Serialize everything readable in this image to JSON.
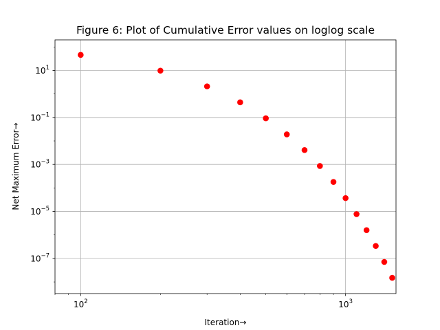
{
  "chart_data": {
    "type": "scatter",
    "title": "Figure 6: Plot of Cumulative Error values on loglog scale",
    "xlabel": "Iteration→",
    "ylabel": "Net Maximum Error→",
    "xscale": "log",
    "yscale": "log",
    "xlim": [
      80,
      1550
    ],
    "ylim": [
      3.2e-09,
      200
    ],
    "grid": true,
    "marker_color": "#ff0000",
    "x_ticks": [
      {
        "value": 100,
        "base": "10",
        "exp": "2"
      },
      {
        "value": 1000,
        "base": "10",
        "exp": "3"
      }
    ],
    "y_ticks": [
      {
        "value": 1e-07,
        "base": "10",
        "exp": "−7"
      },
      {
        "value": 1e-05,
        "base": "10",
        "exp": "−5"
      },
      {
        "value": 0.001,
        "base": "10",
        "exp": "−3"
      },
      {
        "value": 0.1,
        "base": "10",
        "exp": "−1"
      },
      {
        "value": 10,
        "base": "10",
        "exp": "1"
      }
    ],
    "x": [
      100,
      200,
      300,
      400,
      500,
      600,
      700,
      800,
      900,
      1000,
      1100,
      1200,
      1300,
      1400,
      1500
    ],
    "y": [
      46,
      9.8,
      2.1,
      0.44,
      0.092,
      0.019,
      0.0041,
      0.00086,
      0.00018,
      3.7e-05,
      7.7e-06,
      1.6e-06,
      3.4e-07,
      7.1e-08,
      1.5e-08
    ]
  }
}
